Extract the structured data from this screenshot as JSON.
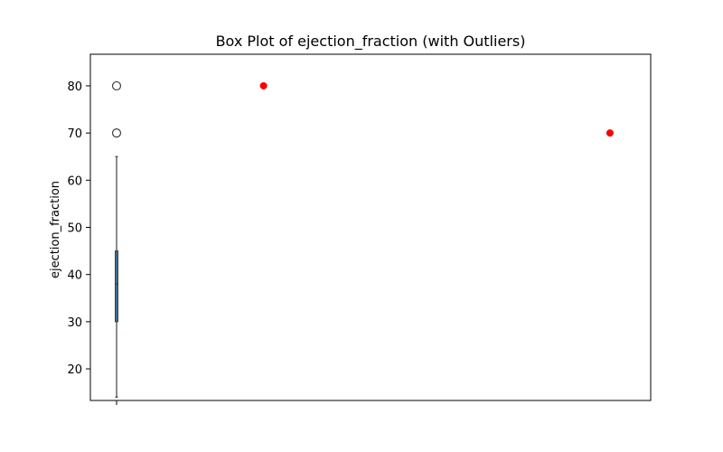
{
  "chart_data": {
    "type": "box",
    "title": "Box Plot of ejection_fraction (with Outliers)",
    "xlabel": "",
    "ylabel": "ejection_fraction",
    "ylim": [
      13.3,
      86.7
    ],
    "yticks": [
      20,
      30,
      40,
      50,
      60,
      70,
      80
    ],
    "grid": false,
    "box": {
      "whisker_low": 14,
      "q1": 30,
      "median": 38,
      "q3": 45,
      "whisker_high": 65,
      "fliers": [
        70,
        80
      ],
      "color": "#3a6e8f",
      "line_color": "#3f3f3f"
    },
    "highlighted_outliers": {
      "color": "#ff0000",
      "points": [
        {
          "x": 0.29,
          "y": 80
        },
        {
          "x": 0.97,
          "y": 70
        }
      ],
      "xlim": [
        -0.05,
        1.05
      ]
    }
  }
}
